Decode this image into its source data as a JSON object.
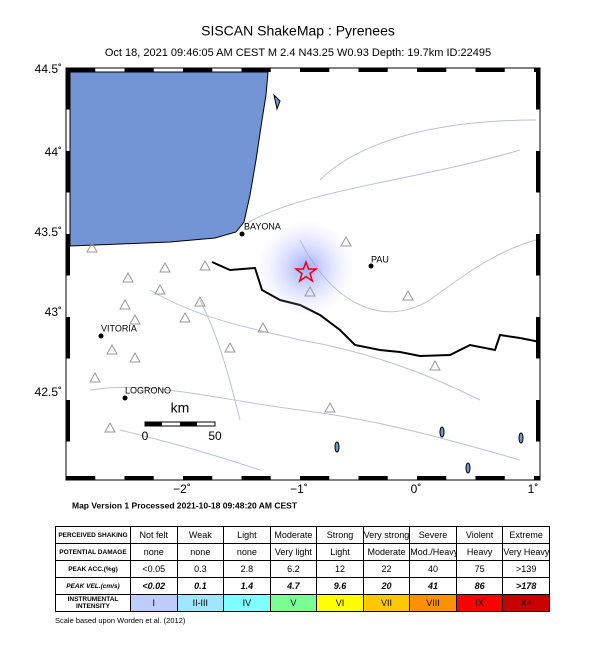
{
  "header": {
    "title": "SISCAN ShakeMap : Pyrenees",
    "subtitle": "Oct 18, 2021 09:46:05 AM CEST   M 2.4   N43.25 W0.93   Depth: 19.7km   ID:22495"
  },
  "map": {
    "lat_labels": [
      "44.5˚",
      "44˚",
      "43.5˚",
      "43˚",
      "42.5˚"
    ],
    "lon_labels": [
      "−2˚",
      "−1˚",
      "0˚",
      "1˚"
    ],
    "places": [
      "BAYONA",
      "PAU",
      "VITORIA",
      "LOGRONO"
    ],
    "scale": {
      "unit": "km",
      "start": "0",
      "end": "50"
    }
  },
  "version": "Map Version 1 Processed 2021-10-18 09:48:20 AM CEST",
  "table": {
    "rows": [
      [
        "PERCEIVED SHAKING",
        "Not felt",
        "Weak",
        "Light",
        "Moderate",
        "Strong",
        "Very strong",
        "Severe",
        "Violent",
        "Extreme"
      ],
      [
        "POTENTIAL DAMAGE",
        "none",
        "none",
        "none",
        "Very light",
        "Light",
        "Moderate",
        "Mod./Heavy",
        "Heavy",
        "Very Heavy"
      ],
      [
        "PEAK ACC.(%g)",
        "<0.05",
        "0.3",
        "2.8",
        "6.2",
        "12",
        "22",
        "40",
        "75",
        ">139"
      ],
      [
        "PEAK VEL.(cm/s)",
        "<0.02",
        "0.1",
        "1.4",
        "4.7",
        "9.6",
        "20",
        "41",
        "86",
        ">178"
      ],
      [
        "INSTRUMENTAL INTENSITY",
        "I",
        "II-III",
        "IV",
        "V",
        "VI",
        "VII",
        "VIII",
        "IX",
        "X+"
      ]
    ]
  },
  "footer": "Scale based upon Worden et al. (2012)"
}
